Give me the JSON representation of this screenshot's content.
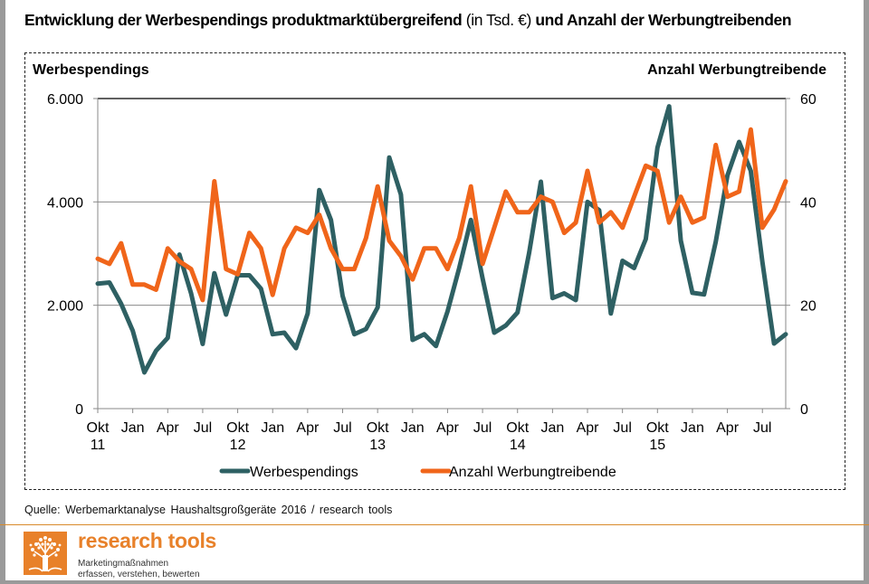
{
  "title": {
    "part1": "Entwicklung der Werbespendings produktmarktübergreifend",
    "unit": "(in Tsd. €)",
    "part2": "und Anzahl der Werbungtreibenden"
  },
  "source": "Quelle: Werbemarktanalyse Haushaltsgroßgeräte 2016 / research tools",
  "logo": {
    "name": "research tools",
    "tagline_line1": "Marketingmaßnahmen",
    "tagline_line2": "erfassen, verstehen, bewerten",
    "icon": "tree-icon"
  },
  "colors": {
    "werbespendings": "#2e6063",
    "anzahl": "#f0651a",
    "brand": "#e8812a"
  },
  "chart_data": {
    "type": "line",
    "title": "Entwicklung der Werbespendings produktmarktübergreifend (in Tsd. €) und Anzahl der Werbungtreibenden",
    "ylabel_left": "Werbespendings",
    "ylabel_right": "Anzahl Werbungtreibende",
    "ylim_left": [
      0,
      6000
    ],
    "ylim_right": [
      0,
      60
    ],
    "yticks_left": [
      "0",
      "2.000",
      "4.000",
      "6.000"
    ],
    "yticks_left_values": [
      0,
      2000,
      4000,
      6000
    ],
    "yticks_right": [
      "0",
      "20",
      "40",
      "60"
    ],
    "yticks_right_values": [
      0,
      20,
      40,
      60
    ],
    "grid": true,
    "legend_position": "bottom",
    "x_tick_labels": [
      {
        "month_index": 0,
        "label": "Okt",
        "year": "11"
      },
      {
        "month_index": 3,
        "label": "Jan",
        "year": ""
      },
      {
        "month_index": 6,
        "label": "Apr",
        "year": ""
      },
      {
        "month_index": 9,
        "label": "Jul",
        "year": ""
      },
      {
        "month_index": 12,
        "label": "Okt",
        "year": "12"
      },
      {
        "month_index": 15,
        "label": "Jan",
        "year": ""
      },
      {
        "month_index": 18,
        "label": "Apr",
        "year": ""
      },
      {
        "month_index": 21,
        "label": "Jul",
        "year": ""
      },
      {
        "month_index": 24,
        "label": "Okt",
        "year": "13"
      },
      {
        "month_index": 27,
        "label": "Jan",
        "year": ""
      },
      {
        "month_index": 30,
        "label": "Apr",
        "year": ""
      },
      {
        "month_index": 33,
        "label": "Jul",
        "year": ""
      },
      {
        "month_index": 36,
        "label": "Okt",
        "year": "14"
      },
      {
        "month_index": 39,
        "label": "Jan",
        "year": ""
      },
      {
        "month_index": 42,
        "label": "Apr",
        "year": ""
      },
      {
        "month_index": 45,
        "label": "Jul",
        "year": ""
      },
      {
        "month_index": 48,
        "label": "Okt",
        "year": "15"
      },
      {
        "month_index": 51,
        "label": "Jan",
        "year": ""
      },
      {
        "month_index": 54,
        "label": "Apr",
        "year": ""
      },
      {
        "month_index": 57,
        "label": "Jul",
        "year": ""
      }
    ],
    "n_points": 60,
    "series": [
      {
        "name": "Werbespendings",
        "axis": "left",
        "values": [
          2420,
          2440,
          2030,
          1510,
          700,
          1120,
          1370,
          2980,
          2230,
          1250,
          2620,
          1820,
          2580,
          2580,
          2320,
          1440,
          1470,
          1170,
          1840,
          4230,
          3650,
          2180,
          1440,
          1540,
          1960,
          4860,
          4140,
          1330,
          1440,
          1210,
          1880,
          2720,
          3650,
          2520,
          1470,
          1610,
          1860,
          3020,
          4390,
          2140,
          2230,
          2100,
          4000,
          3840,
          1840,
          2860,
          2720,
          3280,
          5050,
          5850,
          3250,
          2240,
          2210,
          3230,
          4510,
          5160,
          4600,
          2840,
          1260,
          1440
        ]
      },
      {
        "name": "Anzahl Werbungtreibende",
        "axis": "right",
        "values": [
          29,
          28,
          32,
          24,
          24,
          23,
          31,
          28.5,
          27,
          21,
          44,
          27,
          26,
          34,
          31,
          22,
          31,
          35,
          34,
          37.5,
          31,
          27,
          27,
          33,
          43,
          32.5,
          29.5,
          25,
          31,
          31,
          27,
          33,
          43,
          28,
          35,
          42,
          38,
          38,
          41,
          40,
          34,
          36,
          46,
          36,
          38,
          35,
          41,
          47,
          46,
          36,
          41,
          36,
          37,
          51,
          41,
          42,
          54,
          35,
          38.5,
          44
        ]
      }
    ]
  }
}
